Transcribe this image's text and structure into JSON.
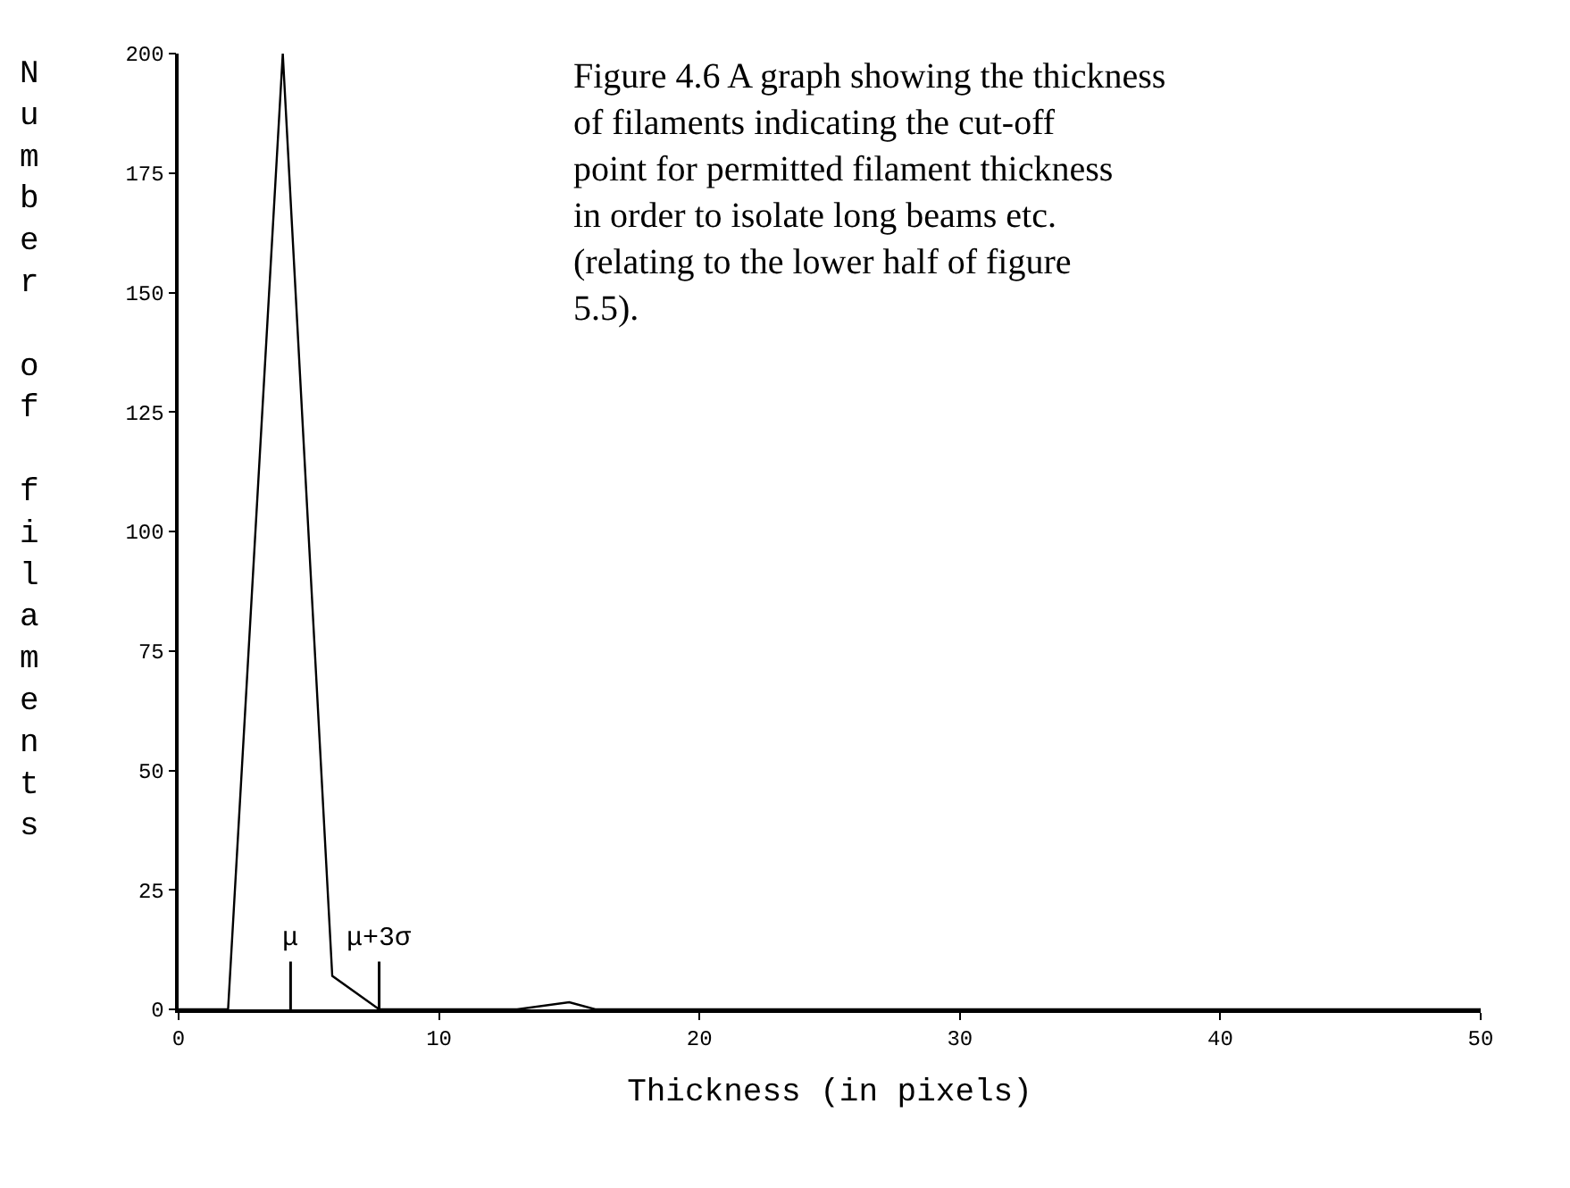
{
  "chart_data": {
    "type": "line",
    "title": "Figure 4.6 A graph showing the thickness of filaments indicating the cut-off point for permitted filament thickness in order to isolate long beams etc. (relating to the lower half of figure 5.5).",
    "xlabel": "Thickness (in pixels)",
    "ylabel": "Number of filaments",
    "x": [
      0,
      1.9,
      4.0,
      5.9,
      7.7,
      13,
      15,
      16,
      50
    ],
    "series": [
      {
        "color": "#000000",
        "values": [
          0,
          0,
          200,
          7,
          0,
          0,
          1.5,
          0,
          0
        ]
      }
    ],
    "xlim": [
      0,
      50
    ],
    "xticks": [
      0,
      10,
      20,
      30,
      40,
      50
    ],
    "ylim": [
      0,
      200
    ],
    "yticks": [
      0,
      25,
      50,
      75,
      100,
      125,
      150,
      175,
      200
    ],
    "ref_lines": [
      {
        "axis": "x",
        "value": 4.3,
        "label": "μ"
      },
      {
        "axis": "x",
        "value": 7.7,
        "label": "μ+3σ"
      }
    ],
    "marker": "none"
  }
}
